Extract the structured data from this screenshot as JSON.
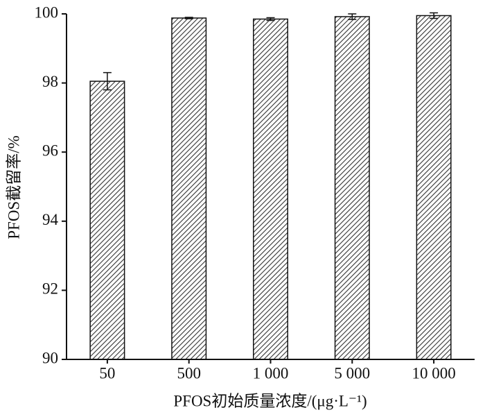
{
  "chart_data": {
    "type": "bar",
    "x_label": "PFOS初始质量浓度/(μg·L⁻¹)",
    "y_label": "PFOS截留率/%",
    "categories": [
      "50",
      "500",
      "1 000",
      "5 000",
      "10 000"
    ],
    "values": [
      98.05,
      99.88,
      99.85,
      99.92,
      99.95
    ],
    "errors": [
      0.25,
      0.02,
      0.04,
      0.08,
      0.08
    ],
    "color": "#333333",
    "ylim": [
      90,
      100
    ],
    "yticks": [
      90,
      92,
      94,
      96,
      98,
      100
    ],
    "grid": false
  }
}
